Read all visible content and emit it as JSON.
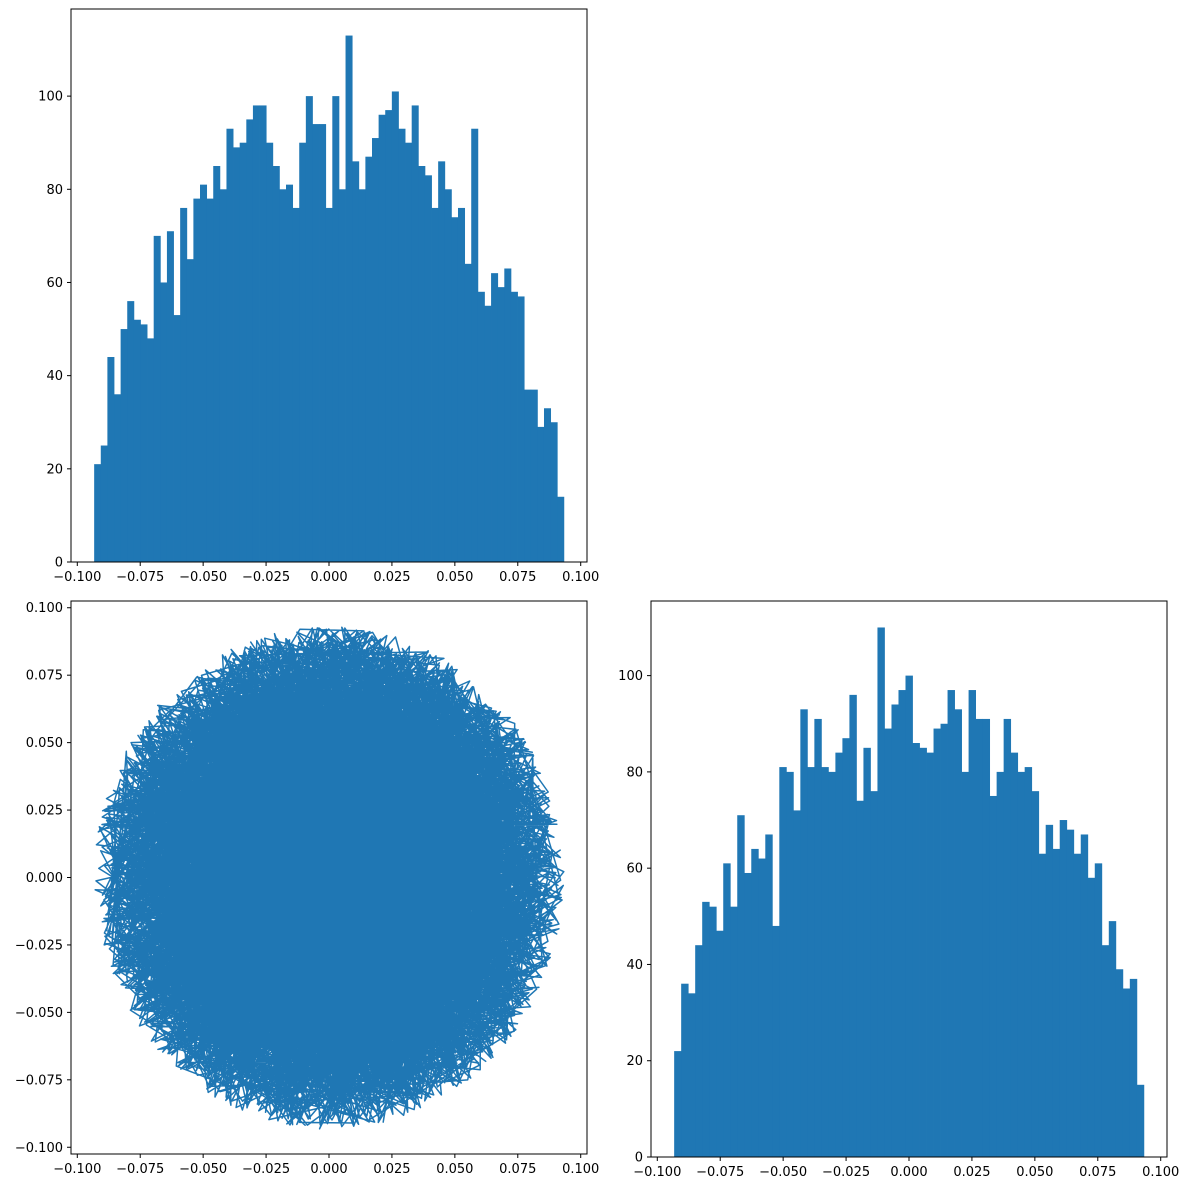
{
  "colors": {
    "series": "#1f77b4",
    "axis": "#000000",
    "background": "#ffffff"
  },
  "chart_data": [
    {
      "type": "bar",
      "subtype": "histogram",
      "position": "top-left",
      "title": "",
      "xlabel": "",
      "ylabel": "",
      "xlim": [
        -0.1025,
        0.1025
      ],
      "ylim": [
        0,
        118.7
      ],
      "bin_range": [
        -0.0933,
        0.0933
      ],
      "xticks": [
        "−0.100",
        "−0.075",
        "−0.050",
        "−0.025",
        "0.000",
        "0.025",
        "0.050",
        "0.075",
        "0.100"
      ],
      "yticks": [
        "0",
        "20",
        "40",
        "60",
        "80",
        "100"
      ],
      "values": [
        21,
        25,
        44,
        36,
        50,
        56,
        52,
        51,
        48,
        70,
        60,
        71,
        53,
        76,
        65,
        78,
        81,
        78,
        85,
        80,
        93,
        89,
        90,
        95,
        98,
        98,
        90,
        85,
        80,
        81,
        76,
        90,
        100,
        94,
        94,
        76,
        100,
        80,
        113,
        86,
        80,
        87,
        91,
        96,
        97,
        101,
        93,
        90,
        98,
        85,
        83,
        76,
        86,
        80,
        74,
        76,
        64,
        93,
        58,
        55,
        62,
        59,
        63,
        58,
        57,
        37,
        37,
        29,
        33,
        30,
        14
      ]
    },
    {
      "type": "line",
      "position": "bottom-left",
      "title": "",
      "xlabel": "",
      "ylabel": "",
      "xlim": [
        -0.1025,
        0.1025
      ],
      "ylim": [
        -0.1025,
        0.1025
      ],
      "xticks": [
        "−0.100",
        "−0.075",
        "−0.050",
        "−0.025",
        "0.000",
        "0.025",
        "0.050",
        "0.075",
        "0.100"
      ],
      "yticks": [
        "−0.100",
        "−0.075",
        "−0.050",
        "−0.025",
        "0.000",
        "0.025",
        "0.050",
        "0.075",
        "0.100"
      ],
      "description": "random walk of points uniformly filling a disc of radius 0.0933",
      "radius": 0.0933,
      "n_points": 5000
    },
    {
      "type": "bar",
      "subtype": "histogram",
      "position": "bottom-right",
      "title": "",
      "xlabel": "",
      "ylabel": "",
      "xlim": [
        -0.1025,
        0.1025
      ],
      "ylim": [
        0,
        115.5
      ],
      "bin_range": [
        -0.0933,
        0.0933
      ],
      "xticks": [
        "−0.100",
        "−0.075",
        "−0.050",
        "−0.025",
        "0.000",
        "0.025",
        "0.050",
        "0.075",
        "0.100"
      ],
      "yticks": [
        "0",
        "20",
        "40",
        "60",
        "80",
        "100"
      ],
      "values": [
        22,
        36,
        34,
        44,
        53,
        52,
        47,
        61,
        52,
        71,
        59,
        64,
        62,
        67,
        48,
        81,
        80,
        72,
        93,
        81,
        91,
        81,
        80,
        84,
        87,
        96,
        74,
        85,
        76,
        110,
        89,
        94,
        97,
        100,
        86,
        85,
        84,
        89,
        90,
        97,
        93,
        80,
        97,
        91,
        91,
        75,
        80,
        91,
        84,
        80,
        81,
        76,
        63,
        69,
        64,
        70,
        68,
        63,
        67,
        58,
        61,
        44,
        49,
        39,
        35,
        37,
        15
      ]
    }
  ]
}
